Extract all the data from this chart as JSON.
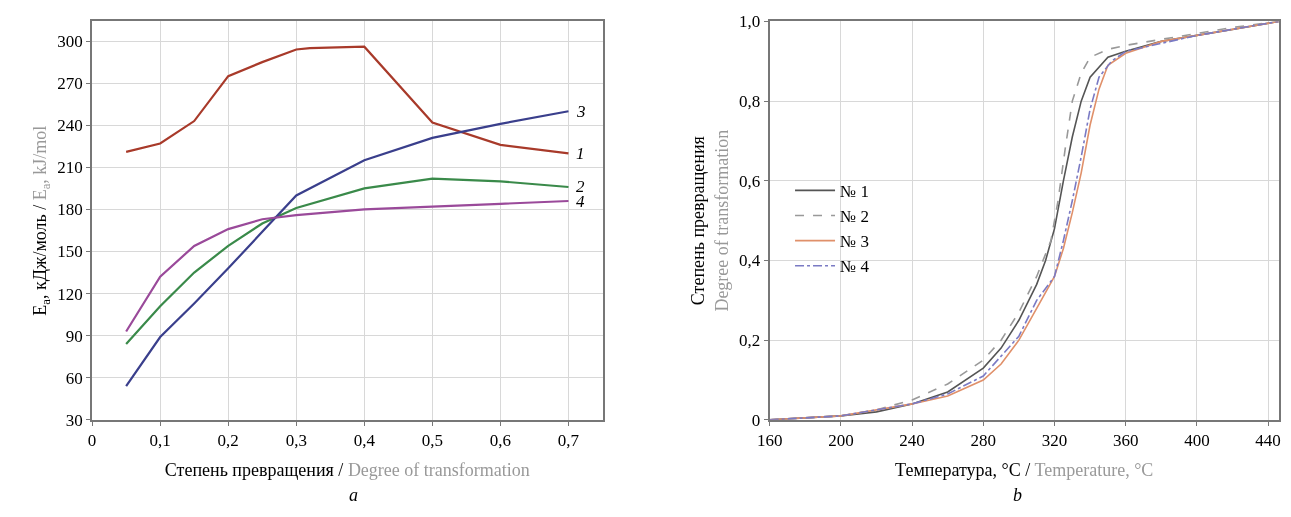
{
  "chart_data": [
    {
      "type": "line",
      "xlabel": "Степень превращения / Degree of transformation",
      "ylabel": "E$_{a}$, кДж/моль / E$_{a}$, kJ/mol",
      "annotations": [
        "a"
      ],
      "x": [
        0.05,
        0.1,
        0.15,
        0.2,
        0.25,
        0.3,
        0.4,
        0.5,
        0.6,
        0.7
      ],
      "series": [
        {
          "name": "1",
          "color": "#a83a2a",
          "x": [
            0.05,
            0.1,
            0.15,
            0.2,
            0.25,
            0.3,
            0.32,
            0.4,
            0.5,
            0.6,
            0.7
          ],
          "values": [
            221,
            227,
            243,
            275,
            285,
            294,
            295,
            296,
            242,
            226,
            220
          ]
        },
        {
          "name": "2",
          "color": "#3a8a4a",
          "values": [
            84,
            111,
            135,
            154,
            170,
            181,
            195,
            202,
            200,
            196
          ]
        },
        {
          "name": "3",
          "color": "#3a3f8c",
          "values": [
            54,
            89,
            113,
            138,
            164,
            190,
            215,
            231,
            241,
            250
          ]
        },
        {
          "name": "4",
          "color": "#9a4a9a",
          "values": [
            93,
            132,
            154,
            166,
            173,
            176,
            180,
            182,
            184,
            186
          ]
        }
      ],
      "xlim": [
        0,
        0.75
      ],
      "ylim": [
        30,
        314
      ],
      "xticks": [
        0,
        {
          "value": 0.1,
          "label": "0,1"
        },
        {
          "value": 0.2,
          "label": "0,2"
        },
        {
          "value": 0.3,
          "label": "0,3"
        },
        {
          "value": 0.4,
          "label": "0,4"
        },
        {
          "value": 0.5,
          "label": "0,5"
        },
        {
          "value": 0.6,
          "label": "0,6"
        },
        {
          "value": 0.7,
          "label": "0,7"
        }
      ],
      "yticks": [
        30,
        60,
        90,
        120,
        150,
        180,
        210,
        240,
        270,
        300
      ],
      "grid": true,
      "legend": false,
      "marker": "none",
      "line_style": "solid"
    },
    {
      "type": "line",
      "xlabel": "Температура, °C / Temperature, °C",
      "ylabel": "Степень превращения\nDegree of transformation",
      "annotations": [
        "b"
      ],
      "series": [
        {
          "name": "№ 1",
          "color": "#555555",
          "line_style": "solid",
          "x": [
            160,
            200,
            220,
            240,
            260,
            280,
            290,
            300,
            310,
            315,
            320,
            325,
            330,
            335,
            340,
            350,
            360,
            380,
            400,
            420,
            446
          ],
          "values": [
            0,
            0.01,
            0.02,
            0.04,
            0.07,
            0.13,
            0.18,
            0.25,
            0.34,
            0.4,
            0.48,
            0.6,
            0.71,
            0.8,
            0.86,
            0.91,
            0.925,
            0.95,
            0.965,
            0.98,
            1.0
          ]
        },
        {
          "name": "№ 2",
          "color": "#999999",
          "line_style": "dashed",
          "x": [
            160,
            200,
            220,
            240,
            260,
            280,
            290,
            300,
            310,
            318,
            322,
            326,
            330,
            335,
            340,
            350,
            360,
            380,
            400,
            420,
            446
          ],
          "values": [
            0,
            0.01,
            0.025,
            0.05,
            0.09,
            0.15,
            0.2,
            0.27,
            0.36,
            0.45,
            0.55,
            0.68,
            0.8,
            0.87,
            0.91,
            0.93,
            0.94,
            0.955,
            0.97,
            0.985,
            1.0
          ]
        },
        {
          "name": "№ 3",
          "color": "#e0906a",
          "line_style": "solid",
          "x": [
            160,
            200,
            240,
            260,
            280,
            290,
            300,
            310,
            320,
            325,
            330,
            335,
            340,
            345,
            350,
            360,
            380,
            400,
            446
          ],
          "values": [
            0,
            0.01,
            0.04,
            0.06,
            0.1,
            0.14,
            0.2,
            0.28,
            0.36,
            0.43,
            0.52,
            0.62,
            0.74,
            0.83,
            0.89,
            0.92,
            0.95,
            0.965,
            1.0
          ]
        },
        {
          "name": "№ 4",
          "color": "#7a7ac4",
          "line_style": "dashdot",
          "x": [
            160,
            200,
            240,
            260,
            280,
            300,
            310,
            320,
            325,
            330,
            335,
            340,
            345,
            352,
            360,
            400,
            446
          ],
          "values": [
            0,
            0.01,
            0.04,
            0.065,
            0.11,
            0.21,
            0.3,
            0.36,
            0.45,
            0.55,
            0.66,
            0.78,
            0.86,
            0.9,
            0.925,
            0.965,
            1.0
          ]
        }
      ],
      "xlim": [
        160,
        446
      ],
      "ylim": [
        0,
        1.0
      ],
      "xticks": [
        160,
        200,
        240,
        280,
        320,
        360,
        400,
        440
      ],
      "yticks": [
        0,
        {
          "value": 0.2,
          "label": "0,2"
        },
        {
          "value": 0.4,
          "label": "0,4"
        },
        {
          "value": 0.6,
          "label": "0,6"
        },
        {
          "value": 0.8,
          "label": "0,8"
        },
        {
          "value": 1.0,
          "label": "1,0"
        }
      ],
      "grid": true,
      "legend": "left",
      "marker": "none"
    }
  ]
}
